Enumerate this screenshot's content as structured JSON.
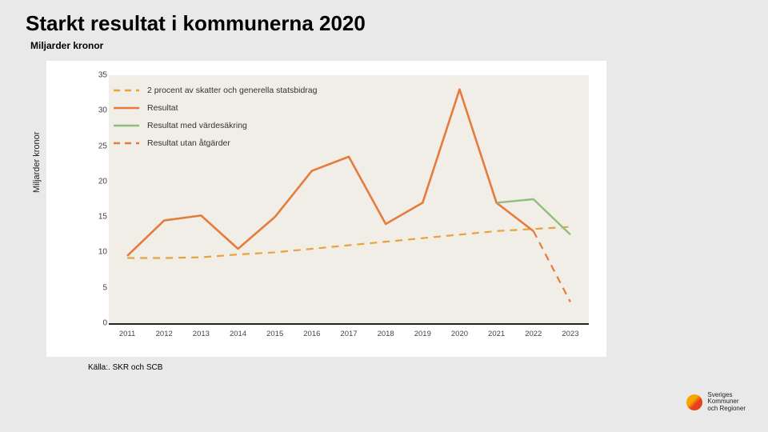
{
  "title": "Starkt resultat i kommunerna 2020",
  "subtitle": "Miljarder kronor",
  "ylabel": "Miljarder kronor",
  "source": "Källa:. SKR och SCB",
  "logo": {
    "line1": "Sveriges",
    "line2": "Kommuner",
    "line3": "och Regioner"
  },
  "chart": {
    "type": "line",
    "ylim": [
      0,
      35
    ],
    "ytick_step": 5,
    "xcats": [
      "2011",
      "2012",
      "2013",
      "2014",
      "2015",
      "2016",
      "2017",
      "2018",
      "2019",
      "2020",
      "2021",
      "2022",
      "2023"
    ],
    "plot_bg": "#f0eee7",
    "grid_color": "#ffffff",
    "axis_color": "#222222",
    "tick_fontsize": 10,
    "label_fontsize": 11,
    "legend": {
      "items": [
        {
          "label": "2 procent av skatter och generella statsbidrag",
          "color": "#e9a23b",
          "dash": true
        },
        {
          "label": "Resultat",
          "color": "#e67b3e",
          "dash": false
        },
        {
          "label": "Resultat med värdesäkring",
          "color": "#8fbf7a",
          "dash": false
        },
        {
          "label": "Resultat utan åtgärder",
          "color": "#e67b3e",
          "dash": true
        }
      ]
    },
    "series": [
      {
        "name": "two_percent",
        "color": "#e9a23b",
        "dash": true,
        "width": 2.2,
        "points": [
          [
            0,
            9.2
          ],
          [
            1,
            9.2
          ],
          [
            2,
            9.3
          ],
          [
            3,
            9.7
          ],
          [
            4,
            10.0
          ],
          [
            5,
            10.5
          ],
          [
            6,
            11.0
          ],
          [
            7,
            11.5
          ],
          [
            8,
            12.0
          ],
          [
            9,
            12.5
          ],
          [
            10,
            13.0
          ],
          [
            11,
            13.3
          ],
          [
            12,
            13.6
          ]
        ]
      },
      {
        "name": "resultat",
        "color": "#e67b3e",
        "dash": false,
        "width": 2.6,
        "points": [
          [
            0,
            9.5
          ],
          [
            1,
            14.5
          ],
          [
            2,
            15.2
          ],
          [
            3,
            10.5
          ],
          [
            4,
            15.0
          ],
          [
            5,
            21.5
          ],
          [
            6,
            23.5
          ],
          [
            7,
            14.0
          ],
          [
            8,
            17.0
          ],
          [
            9,
            33.0
          ],
          [
            10,
            17.0
          ],
          [
            11,
            13.0
          ]
        ]
      },
      {
        "name": "med_vardesakring",
        "color": "#8fbf7a",
        "dash": false,
        "width": 2.4,
        "points": [
          [
            10,
            17.0
          ],
          [
            11,
            17.5
          ],
          [
            12,
            12.5
          ]
        ]
      },
      {
        "name": "utan_atgarder",
        "color": "#e67b3e",
        "dash": true,
        "width": 2.2,
        "points": [
          [
            11,
            13.0
          ],
          [
            12,
            3.0
          ]
        ]
      }
    ]
  }
}
